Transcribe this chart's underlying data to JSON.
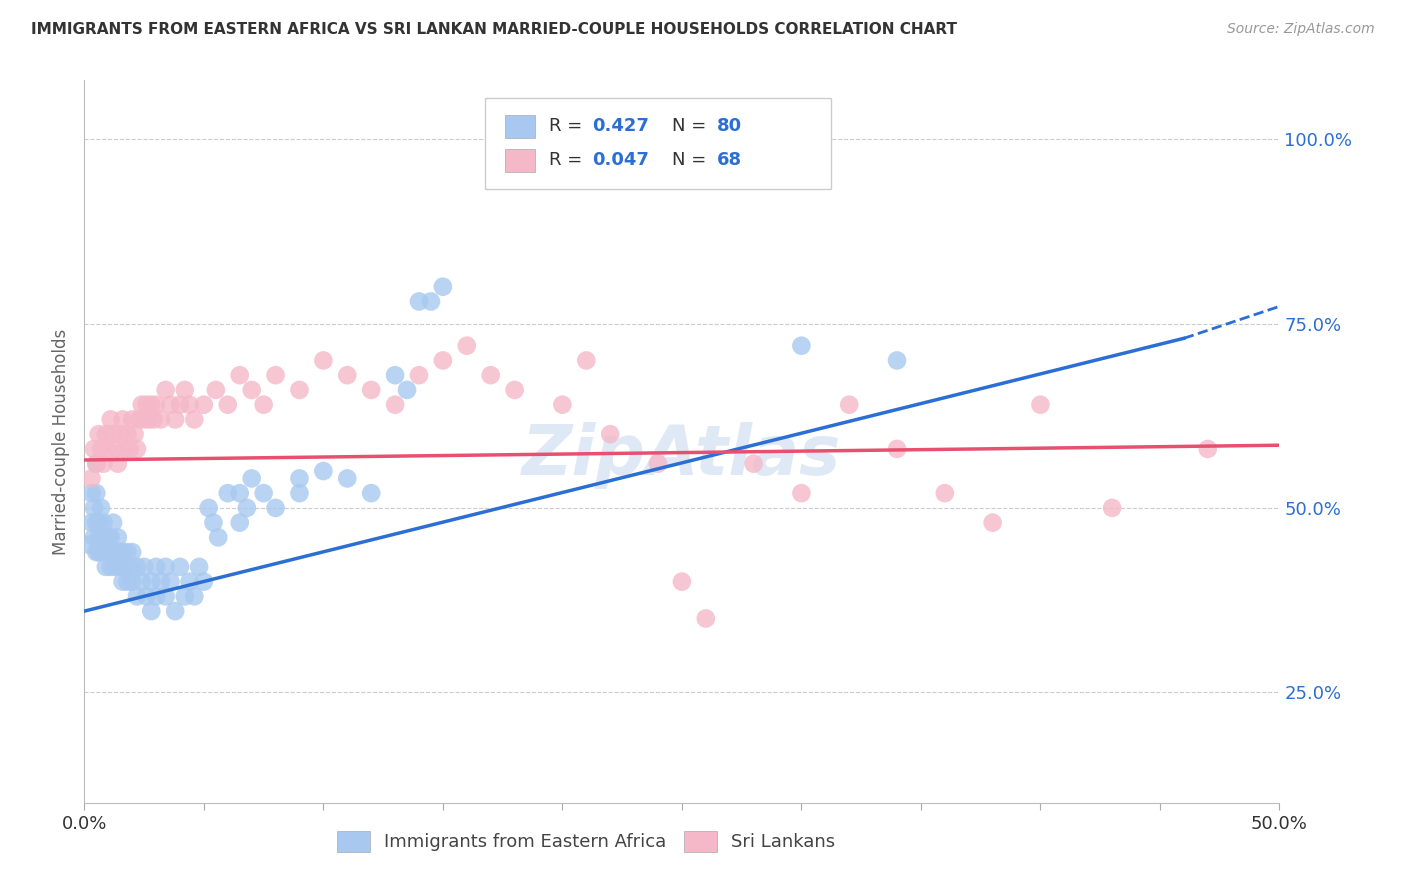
{
  "title": "IMMIGRANTS FROM EASTERN AFRICA VS SRI LANKAN MARRIED-COUPLE HOUSEHOLDS CORRELATION CHART",
  "source": "Source: ZipAtlas.com",
  "ylabel": "Married-couple Households",
  "yticks": [
    "100.0%",
    "75.0%",
    "50.0%",
    "25.0%"
  ],
  "ytick_vals": [
    1.0,
    0.75,
    0.5,
    0.25
  ],
  "xlim": [
    0.0,
    0.5
  ],
  "ylim": [
    0.1,
    1.08
  ],
  "blue_color": "#A8C8F0",
  "pink_color": "#F5B8C8",
  "blue_line_color": "#2B6FD4",
  "pink_line_color": "#E85070",
  "legend1": "Immigrants from Eastern Africa",
  "legend2": "Sri Lankans",
  "watermark": "ZipAtlas",
  "blue_line": [
    0.0,
    0.36,
    0.46,
    0.73
  ],
  "blue_line_dashed": [
    0.46,
    0.73,
    0.52,
    0.795
  ],
  "pink_line": [
    0.0,
    0.565,
    0.5,
    0.585
  ],
  "blue_points": [
    [
      0.002,
      0.45
    ],
    [
      0.003,
      0.48
    ],
    [
      0.003,
      0.52
    ],
    [
      0.004,
      0.46
    ],
    [
      0.004,
      0.5
    ],
    [
      0.005,
      0.44
    ],
    [
      0.005,
      0.48
    ],
    [
      0.005,
      0.52
    ],
    [
      0.005,
      0.56
    ],
    [
      0.006,
      0.44
    ],
    [
      0.006,
      0.48
    ],
    [
      0.006,
      0.46
    ],
    [
      0.007,
      0.5
    ],
    [
      0.007,
      0.44
    ],
    [
      0.007,
      0.46
    ],
    [
      0.008,
      0.48
    ],
    [
      0.008,
      0.44
    ],
    [
      0.009,
      0.46
    ],
    [
      0.009,
      0.42
    ],
    [
      0.01,
      0.44
    ],
    [
      0.01,
      0.46
    ],
    [
      0.011,
      0.42
    ],
    [
      0.011,
      0.46
    ],
    [
      0.012,
      0.44
    ],
    [
      0.012,
      0.48
    ],
    [
      0.013,
      0.44
    ],
    [
      0.013,
      0.42
    ],
    [
      0.014,
      0.46
    ],
    [
      0.015,
      0.44
    ],
    [
      0.015,
      0.42
    ],
    [
      0.016,
      0.44
    ],
    [
      0.016,
      0.4
    ],
    [
      0.017,
      0.42
    ],
    [
      0.018,
      0.4
    ],
    [
      0.018,
      0.44
    ],
    [
      0.019,
      0.42
    ],
    [
      0.02,
      0.44
    ],
    [
      0.02,
      0.4
    ],
    [
      0.022,
      0.42
    ],
    [
      0.022,
      0.38
    ],
    [
      0.024,
      0.4
    ],
    [
      0.025,
      0.42
    ],
    [
      0.026,
      0.38
    ],
    [
      0.028,
      0.4
    ],
    [
      0.028,
      0.36
    ],
    [
      0.03,
      0.38
    ],
    [
      0.03,
      0.42
    ],
    [
      0.032,
      0.4
    ],
    [
      0.034,
      0.38
    ],
    [
      0.034,
      0.42
    ],
    [
      0.036,
      0.4
    ],
    [
      0.038,
      0.36
    ],
    [
      0.04,
      0.42
    ],
    [
      0.042,
      0.38
    ],
    [
      0.044,
      0.4
    ],
    [
      0.046,
      0.38
    ],
    [
      0.048,
      0.42
    ],
    [
      0.05,
      0.4
    ],
    [
      0.052,
      0.5
    ],
    [
      0.054,
      0.48
    ],
    [
      0.056,
      0.46
    ],
    [
      0.06,
      0.52
    ],
    [
      0.065,
      0.48
    ],
    [
      0.065,
      0.52
    ],
    [
      0.068,
      0.5
    ],
    [
      0.07,
      0.54
    ],
    [
      0.075,
      0.52
    ],
    [
      0.08,
      0.5
    ],
    [
      0.09,
      0.54
    ],
    [
      0.09,
      0.52
    ],
    [
      0.1,
      0.55
    ],
    [
      0.11,
      0.54
    ],
    [
      0.12,
      0.52
    ],
    [
      0.13,
      0.68
    ],
    [
      0.135,
      0.66
    ],
    [
      0.14,
      0.78
    ],
    [
      0.145,
      0.78
    ],
    [
      0.15,
      0.8
    ],
    [
      0.3,
      0.72
    ],
    [
      0.34,
      0.7
    ]
  ],
  "pink_points": [
    [
      0.003,
      0.54
    ],
    [
      0.004,
      0.58
    ],
    [
      0.005,
      0.56
    ],
    [
      0.006,
      0.6
    ],
    [
      0.007,
      0.58
    ],
    [
      0.008,
      0.56
    ],
    [
      0.009,
      0.6
    ],
    [
      0.01,
      0.58
    ],
    [
      0.011,
      0.62
    ],
    [
      0.012,
      0.6
    ],
    [
      0.013,
      0.58
    ],
    [
      0.014,
      0.56
    ],
    [
      0.015,
      0.6
    ],
    [
      0.016,
      0.62
    ],
    [
      0.017,
      0.58
    ],
    [
      0.018,
      0.6
    ],
    [
      0.019,
      0.58
    ],
    [
      0.02,
      0.62
    ],
    [
      0.021,
      0.6
    ],
    [
      0.022,
      0.58
    ],
    [
      0.023,
      0.62
    ],
    [
      0.024,
      0.64
    ],
    [
      0.025,
      0.62
    ],
    [
      0.026,
      0.64
    ],
    [
      0.027,
      0.62
    ],
    [
      0.028,
      0.64
    ],
    [
      0.029,
      0.62
    ],
    [
      0.03,
      0.64
    ],
    [
      0.032,
      0.62
    ],
    [
      0.034,
      0.66
    ],
    [
      0.036,
      0.64
    ],
    [
      0.038,
      0.62
    ],
    [
      0.04,
      0.64
    ],
    [
      0.042,
      0.66
    ],
    [
      0.044,
      0.64
    ],
    [
      0.046,
      0.62
    ],
    [
      0.05,
      0.64
    ],
    [
      0.055,
      0.66
    ],
    [
      0.06,
      0.64
    ],
    [
      0.065,
      0.68
    ],
    [
      0.07,
      0.66
    ],
    [
      0.075,
      0.64
    ],
    [
      0.08,
      0.68
    ],
    [
      0.09,
      0.66
    ],
    [
      0.1,
      0.7
    ],
    [
      0.11,
      0.68
    ],
    [
      0.12,
      0.66
    ],
    [
      0.13,
      0.64
    ],
    [
      0.14,
      0.68
    ],
    [
      0.15,
      0.7
    ],
    [
      0.16,
      0.72
    ],
    [
      0.17,
      0.68
    ],
    [
      0.18,
      0.66
    ],
    [
      0.2,
      0.64
    ],
    [
      0.21,
      0.7
    ],
    [
      0.22,
      0.6
    ],
    [
      0.24,
      0.56
    ],
    [
      0.25,
      0.4
    ],
    [
      0.26,
      0.35
    ],
    [
      0.28,
      0.56
    ],
    [
      0.3,
      0.52
    ],
    [
      0.32,
      0.64
    ],
    [
      0.34,
      0.58
    ],
    [
      0.36,
      0.52
    ],
    [
      0.38,
      0.48
    ],
    [
      0.4,
      0.64
    ],
    [
      0.43,
      0.5
    ],
    [
      0.47,
      0.58
    ]
  ]
}
